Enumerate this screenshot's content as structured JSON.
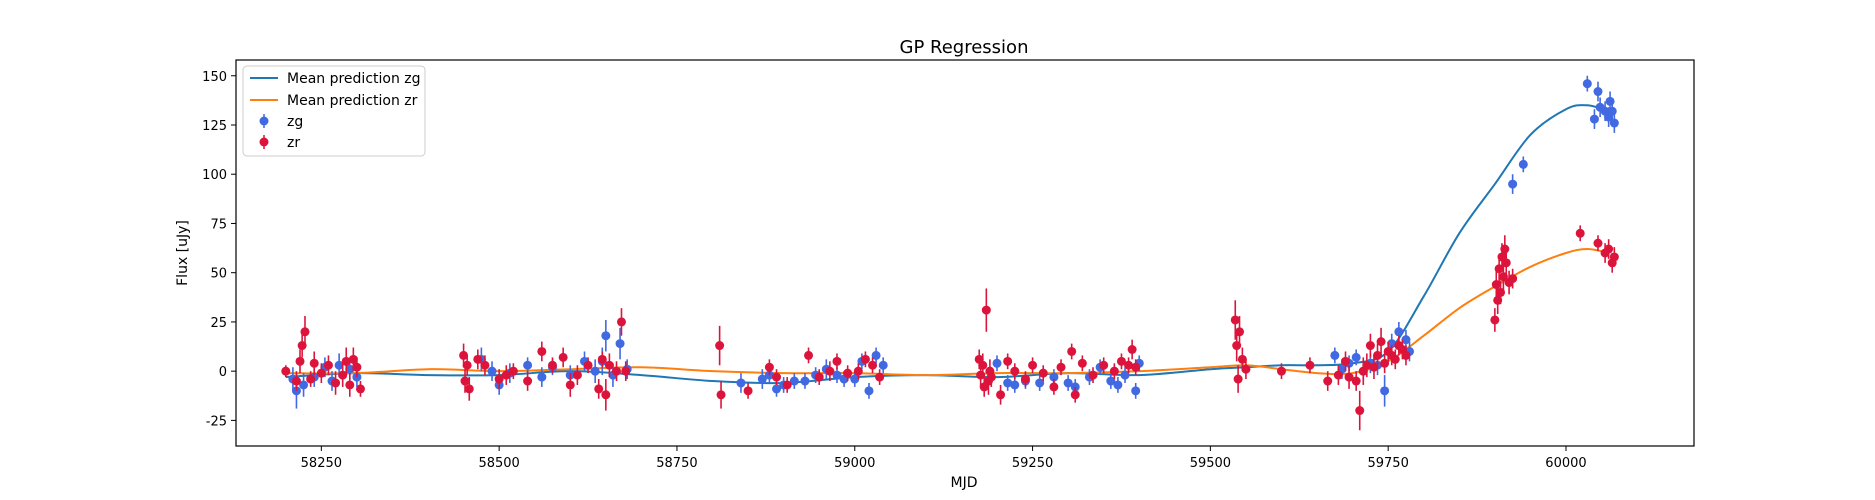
{
  "chart_data": {
    "type": "scatter",
    "title": "GP Regression",
    "xlabel": "MJD",
    "ylabel": "Flux [uJy]",
    "xlim": [
      58130,
      60180
    ],
    "ylim": [
      -38,
      158
    ],
    "xticks": [
      58250,
      58500,
      58750,
      59000,
      59250,
      59500,
      59750,
      60000
    ],
    "yticks": [
      -25,
      0,
      25,
      50,
      75,
      100,
      125,
      150
    ],
    "grid": false,
    "legend_position": "top-left",
    "lines": [
      {
        "name": "Mean prediction zg",
        "color": "#1f77b4",
        "x": [
          58200,
          58300,
          58400,
          58500,
          58600,
          58700,
          58800,
          58900,
          59000,
          59100,
          59200,
          59300,
          59400,
          59500,
          59550,
          59600,
          59650,
          59700,
          59750,
          59800,
          59850,
          59900,
          59950,
          60000,
          60030,
          60060
        ],
        "y": [
          -3,
          -1,
          -2,
          -2,
          0,
          -2,
          -5,
          -6,
          -3,
          -2,
          -3,
          -1,
          -2,
          1,
          2,
          3,
          3,
          4,
          10,
          38,
          70,
          95,
          120,
          133,
          135,
          132
        ]
      },
      {
        "name": "Mean prediction zr",
        "color": "#ff7f0e",
        "x": [
          58200,
          58300,
          58400,
          58500,
          58600,
          58700,
          58800,
          58900,
          59000,
          59100,
          59200,
          59300,
          59400,
          59500,
          59550,
          59600,
          59650,
          59700,
          59750,
          59800,
          59850,
          59900,
          59950,
          60000,
          60030,
          60060
        ],
        "y": [
          -1,
          -1,
          1,
          0,
          1,
          2,
          0,
          -1,
          -1,
          -2,
          -1,
          -1,
          0,
          2,
          3,
          1,
          -1,
          -1,
          5,
          18,
          32,
          43,
          53,
          60,
          62,
          60
        ]
      }
    ],
    "series": [
      {
        "name": "zg",
        "color": "#4169e1",
        "points": [
          [
            58210,
            -4,
            6
          ],
          [
            58215,
            -10,
            9
          ],
          [
            58225,
            -7,
            6
          ],
          [
            58240,
            -3,
            5
          ],
          [
            58255,
            2,
            5
          ],
          [
            58265,
            -5,
            5
          ],
          [
            58275,
            3,
            6
          ],
          [
            58290,
            1,
            5
          ],
          [
            58300,
            -3,
            5
          ],
          [
            58475,
            6,
            6
          ],
          [
            58490,
            0,
            5
          ],
          [
            58500,
            -7,
            5
          ],
          [
            58515,
            -1,
            5
          ],
          [
            58540,
            3,
            4
          ],
          [
            58560,
            -3,
            5
          ],
          [
            58575,
            2,
            4
          ],
          [
            58600,
            -2,
            5
          ],
          [
            58620,
            5,
            5
          ],
          [
            58635,
            0,
            6
          ],
          [
            58645,
            5,
            7
          ],
          [
            58650,
            18,
            8
          ],
          [
            58660,
            -2,
            6
          ],
          [
            58670,
            14,
            8
          ],
          [
            58680,
            1,
            5
          ],
          [
            58840,
            -6,
            5
          ],
          [
            58870,
            -4,
            5
          ],
          [
            58880,
            -2,
            4
          ],
          [
            58890,
            -9,
            4
          ],
          [
            58900,
            -7,
            4
          ],
          [
            58915,
            -5,
            4
          ],
          [
            58930,
            -5,
            4
          ],
          [
            58945,
            -2,
            4
          ],
          [
            58960,
            1,
            5
          ],
          [
            58975,
            -2,
            4
          ],
          [
            58985,
            -4,
            4
          ],
          [
            59000,
            -4,
            4
          ],
          [
            59010,
            5,
            4
          ],
          [
            59020,
            -10,
            4
          ],
          [
            59030,
            8,
            4
          ],
          [
            59040,
            3,
            4
          ],
          [
            59200,
            4,
            4
          ],
          [
            59215,
            -6,
            4
          ],
          [
            59225,
            -7,
            4
          ],
          [
            59240,
            -5,
            4
          ],
          [
            59260,
            -6,
            4
          ],
          [
            59280,
            -3,
            4
          ],
          [
            59300,
            -6,
            4
          ],
          [
            59310,
            -8,
            4
          ],
          [
            59330,
            -3,
            4
          ],
          [
            59345,
            2,
            4
          ],
          [
            59360,
            -5,
            4
          ],
          [
            59370,
            -7,
            4
          ],
          [
            59380,
            -2,
            4
          ],
          [
            59395,
            -10,
            4
          ],
          [
            59400,
            4,
            4
          ],
          [
            59675,
            8,
            4
          ],
          [
            59685,
            1,
            5
          ],
          [
            59695,
            4,
            4
          ],
          [
            59705,
            7,
            4
          ],
          [
            59715,
            0,
            5
          ],
          [
            59725,
            4,
            5
          ],
          [
            59735,
            3,
            5
          ],
          [
            59745,
            -10,
            8
          ],
          [
            59755,
            14,
            5
          ],
          [
            59765,
            20,
            5
          ],
          [
            59775,
            16,
            5
          ],
          [
            59780,
            10,
            5
          ],
          [
            59925,
            95,
            5
          ],
          [
            59940,
            105,
            4
          ],
          [
            60030,
            146,
            4
          ],
          [
            60040,
            128,
            5
          ],
          [
            60045,
            142,
            5
          ],
          [
            60048,
            134,
            5
          ],
          [
            60055,
            132,
            5
          ],
          [
            60060,
            129,
            5
          ],
          [
            60062,
            137,
            5
          ],
          [
            60068,
            126,
            5
          ],
          [
            60065,
            132,
            5
          ]
        ]
      },
      {
        "name": "zr",
        "color": "#dc143c",
        "points": [
          [
            58200,
            0,
            3
          ],
          [
            58215,
            -5,
            5
          ],
          [
            58220,
            5,
            6
          ],
          [
            58223,
            13,
            6
          ],
          [
            58227,
            20,
            8
          ],
          [
            58235,
            -4,
            4
          ],
          [
            58240,
            4,
            6
          ],
          [
            58250,
            -1,
            5
          ],
          [
            58260,
            3,
            5
          ],
          [
            58270,
            -6,
            6
          ],
          [
            58280,
            -2,
            6
          ],
          [
            58285,
            5,
            7
          ],
          [
            58290,
            -7,
            6
          ],
          [
            58295,
            6,
            6
          ],
          [
            58300,
            2,
            5
          ],
          [
            58305,
            -9,
            4
          ],
          [
            58450,
            8,
            6
          ],
          [
            58452,
            -5,
            6
          ],
          [
            58455,
            3,
            5
          ],
          [
            58458,
            -9,
            6
          ],
          [
            58470,
            6,
            5
          ],
          [
            58480,
            3,
            5
          ],
          [
            58500,
            -4,
            5
          ],
          [
            58510,
            -2,
            5
          ],
          [
            58520,
            0,
            4
          ],
          [
            58540,
            -5,
            5
          ],
          [
            58560,
            10,
            5
          ],
          [
            58575,
            3,
            4
          ],
          [
            58590,
            7,
            5
          ],
          [
            58600,
            -7,
            6
          ],
          [
            58610,
            -2,
            5
          ],
          [
            58625,
            3,
            4
          ],
          [
            58640,
            -9,
            5
          ],
          [
            58645,
            6,
            4
          ],
          [
            58650,
            -12,
            8
          ],
          [
            58655,
            3,
            6
          ],
          [
            58665,
            0,
            5
          ],
          [
            58672,
            25,
            7
          ],
          [
            58678,
            0,
            5
          ],
          [
            58810,
            13,
            10
          ],
          [
            58812,
            -12,
            7
          ],
          [
            58850,
            -10,
            4
          ],
          [
            58880,
            2,
            4
          ],
          [
            58890,
            -3,
            4
          ],
          [
            58905,
            -7,
            4
          ],
          [
            58935,
            8,
            4
          ],
          [
            58950,
            -3,
            4
          ],
          [
            58965,
            0,
            5
          ],
          [
            58975,
            5,
            4
          ],
          [
            58990,
            -1,
            4
          ],
          [
            59005,
            0,
            4
          ],
          [
            59015,
            6,
            4
          ],
          [
            59025,
            3,
            4
          ],
          [
            59035,
            -3,
            4
          ],
          [
            59175,
            6,
            5
          ],
          [
            59177,
            -2,
            6
          ],
          [
            59180,
            3,
            6
          ],
          [
            59182,
            -8,
            5
          ],
          [
            59185,
            31,
            11
          ],
          [
            59188,
            -5,
            7
          ],
          [
            59190,
            0,
            6
          ],
          [
            59192,
            -3,
            5
          ],
          [
            59205,
            -12,
            5
          ],
          [
            59215,
            5,
            4
          ],
          [
            59225,
            0,
            4
          ],
          [
            59240,
            -4,
            4
          ],
          [
            59250,
            3,
            4
          ],
          [
            59265,
            -1,
            4
          ],
          [
            59280,
            -8,
            4
          ],
          [
            59290,
            2,
            4
          ],
          [
            59305,
            10,
            4
          ],
          [
            59310,
            -12,
            4
          ],
          [
            59320,
            4,
            4
          ],
          [
            59335,
            -2,
            4
          ],
          [
            59350,
            3,
            4
          ],
          [
            59365,
            0,
            4
          ],
          [
            59375,
            5,
            4
          ],
          [
            59385,
            3,
            4
          ],
          [
            59390,
            11,
            5
          ],
          [
            59395,
            2,
            4
          ],
          [
            59535,
            26,
            10
          ],
          [
            59537,
            13,
            8
          ],
          [
            59539,
            -4,
            7
          ],
          [
            59541,
            20,
            8
          ],
          [
            59545,
            6,
            6
          ],
          [
            59550,
            1,
            5
          ],
          [
            59600,
            0,
            4
          ],
          [
            59640,
            3,
            4
          ],
          [
            59665,
            -5,
            5
          ],
          [
            59680,
            -2,
            5
          ],
          [
            59690,
            5,
            5
          ],
          [
            59695,
            -3,
            6
          ],
          [
            59705,
            -5,
            5
          ],
          [
            59710,
            -20,
            10
          ],
          [
            59715,
            0,
            7
          ],
          [
            59720,
            3,
            6
          ],
          [
            59725,
            13,
            6
          ],
          [
            59730,
            2,
            6
          ],
          [
            59735,
            8,
            6
          ],
          [
            59740,
            15,
            7
          ],
          [
            59745,
            4,
            5
          ],
          [
            59750,
            10,
            5
          ],
          [
            59755,
            8,
            5
          ],
          [
            59760,
            6,
            5
          ],
          [
            59765,
            13,
            5
          ],
          [
            59770,
            11,
            5
          ],
          [
            59775,
            8,
            5
          ],
          [
            59900,
            26,
            6
          ],
          [
            59902,
            44,
            7
          ],
          [
            59904,
            36,
            7
          ],
          [
            59906,
            52,
            7
          ],
          [
            59908,
            40,
            6
          ],
          [
            59910,
            58,
            7
          ],
          [
            59912,
            48,
            7
          ],
          [
            59914,
            62,
            7
          ],
          [
            59916,
            55,
            6
          ],
          [
            59920,
            45,
            6
          ],
          [
            59925,
            47,
            5
          ],
          [
            60020,
            70,
            4
          ],
          [
            60045,
            65,
            4
          ],
          [
            60055,
            60,
            5
          ],
          [
            60060,
            62,
            5
          ],
          [
            60065,
            55,
            5
          ],
          [
            60068,
            58,
            5
          ]
        ]
      }
    ]
  }
}
